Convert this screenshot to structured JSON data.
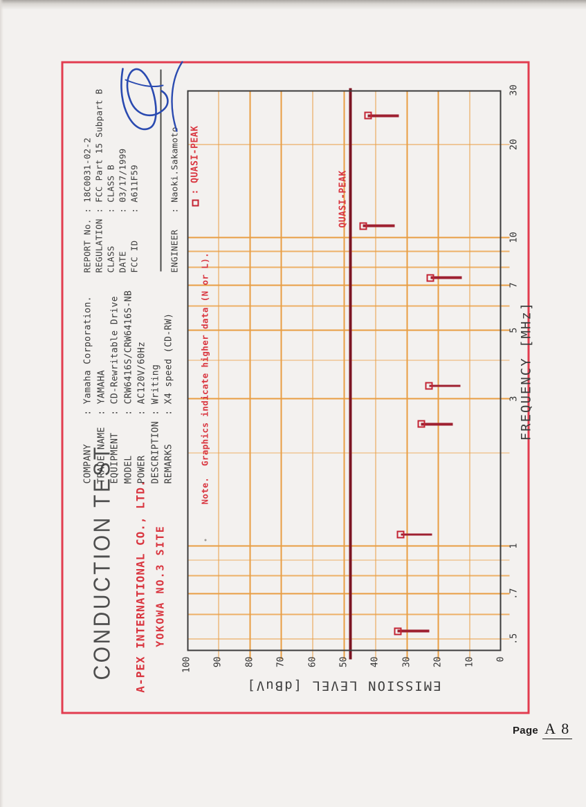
{
  "page": {
    "footer_label": "Page",
    "footer_number": "A 8"
  },
  "title_block": {
    "title": "CONDUCTION TEST",
    "company_line1": "A-PEX INTERNATIONAL CO., LTD.",
    "company_line2": "YOKOWA NO.3 SITE"
  },
  "equipment_info": {
    "rows": [
      {
        "label": "COMPANY",
        "value": "Yamaha Corporation."
      },
      {
        "label": "TRADE NAME",
        "value": "YAMAHA"
      },
      {
        "label": "EQUIPMENT",
        "value": "CD-Rewritable Drive"
      },
      {
        "label": "MODEL",
        "value": "CRW6416S/CRW6416S-NB"
      },
      {
        "label": "POWER",
        "value": "AC120V/60Hz"
      },
      {
        "label": "DESCRIPTION",
        "value": "Writing"
      },
      {
        "label": "REMARKS",
        "value": "X4 speed (CD-RW)"
      }
    ]
  },
  "report_info": {
    "rows": [
      {
        "label": "REPORT No.",
        "value": "18C0031-02-2"
      },
      {
        "label": "REGULATION",
        "value": "FCC Part 15 Subpart B"
      },
      {
        "label": "CLASS",
        "value": "CLASS B"
      },
      {
        "label": "DATE",
        "value": "03/17/1999"
      },
      {
        "label": "FCC ID",
        "value": "A611F59"
      }
    ],
    "engineer": {
      "label": "ENGINEER",
      "value": "Naoki.Sakamoto"
    }
  },
  "note": "Note.  Graphics indicate higher data (N or L).",
  "legend": {
    "marker": "open-square",
    "label": ": QUASI-PEAK"
  },
  "chart_data": {
    "type": "scatter",
    "xlabel": "FREQUENCY  [MHz]",
    "ylabel": "EMISSION LEVEL  [dBuV]",
    "x_scale": "log",
    "xlim": [
      0.46,
      30
    ],
    "ylim": [
      0,
      100
    ],
    "x_gridlines": [
      0.5,
      0.6,
      0.7,
      0.8,
      0.9,
      1,
      2,
      3,
      4,
      5,
      6,
      7,
      8,
      9,
      10,
      20,
      30
    ],
    "x_tick_labels": [
      {
        "value": 0.5,
        "text": ".5"
      },
      {
        "value": 0.7,
        "text": ".7"
      },
      {
        "value": 1,
        "text": "1"
      },
      {
        "value": 3,
        "text": "3"
      },
      {
        "value": 5,
        "text": "5"
      },
      {
        "value": 7,
        "text": "7"
      },
      {
        "value": 10,
        "text": "10"
      },
      {
        "value": 20,
        "text": "20"
      },
      {
        "value": 30,
        "text": "30"
      }
    ],
    "y_ticks": [
      0,
      10,
      20,
      30,
      40,
      50,
      60,
      70,
      80,
      90,
      100
    ],
    "grid": true,
    "legend_position": "top-right-inside",
    "limit_line": {
      "label": "QUASI-PEAK",
      "value_dBuV": 48
    },
    "series": [
      {
        "name": "QUASI-PEAK",
        "marker": "open-square",
        "tail_dB": 10,
        "points": [
          {
            "freq_MHz": 0.53,
            "level_dBuV": 33.0
          },
          {
            "freq_MHz": 1.09,
            "level_dBuV": 32.0
          },
          {
            "freq_MHz": 2.48,
            "level_dBuV": 25.5
          },
          {
            "freq_MHz": 3.3,
            "level_dBuV": 23.0
          },
          {
            "freq_MHz": 7.4,
            "level_dBuV": 22.5
          },
          {
            "freq_MHz": 10.9,
            "level_dBuV": 44.0
          },
          {
            "freq_MHz": 24.8,
            "level_dBuV": 42.5
          }
        ]
      }
    ],
    "colors": {
      "grid_major": "#e89d42",
      "grid_minor": "#edb066",
      "frame": "#3b3b3b",
      "limit_line": "#7c1523",
      "marker": "#c32433",
      "stem": "#9e2030",
      "annotation_red": "#d9353f",
      "border_red": "#e23c4f",
      "signature_blue": "#2a4ab0"
    }
  }
}
